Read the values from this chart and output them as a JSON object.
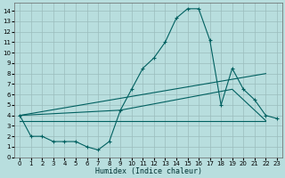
{
  "background_color": "#b8dede",
  "grid_color": "#9bbcbc",
  "line_color": "#006060",
  "xlabel": "Humidex (Indice chaleur)",
  "xlim": [
    -0.5,
    23.5
  ],
  "ylim": [
    0,
    14.8
  ],
  "xticks": [
    0,
    1,
    2,
    3,
    4,
    5,
    6,
    7,
    8,
    9,
    10,
    11,
    12,
    13,
    14,
    15,
    16,
    17,
    18,
    19,
    20,
    21,
    22,
    23
  ],
  "yticks": [
    0,
    1,
    2,
    3,
    4,
    5,
    6,
    7,
    8,
    9,
    10,
    11,
    12,
    13,
    14
  ],
  "series1_x": [
    0,
    1,
    2,
    3,
    4,
    5,
    6,
    7,
    8,
    9,
    10,
    11,
    12,
    13,
    14,
    15,
    16,
    17,
    18,
    19,
    20,
    21,
    22,
    23
  ],
  "series1_y": [
    4.0,
    2.0,
    2.0,
    1.5,
    1.5,
    1.5,
    1.0,
    0.7,
    1.5,
    4.5,
    6.5,
    8.5,
    9.5,
    11.0,
    13.3,
    14.2,
    14.2,
    11.2,
    5.0,
    8.5,
    6.5,
    5.5,
    4.0,
    3.7
  ],
  "series2_x": [
    0,
    22
  ],
  "series2_y": [
    4.0,
    8.0
  ],
  "series3_x": [
    0,
    9,
    19,
    22
  ],
  "series3_y": [
    4.0,
    4.5,
    6.5,
    3.5
  ],
  "series4_x": [
    0,
    22
  ],
  "series4_y": [
    3.5,
    3.5
  ]
}
